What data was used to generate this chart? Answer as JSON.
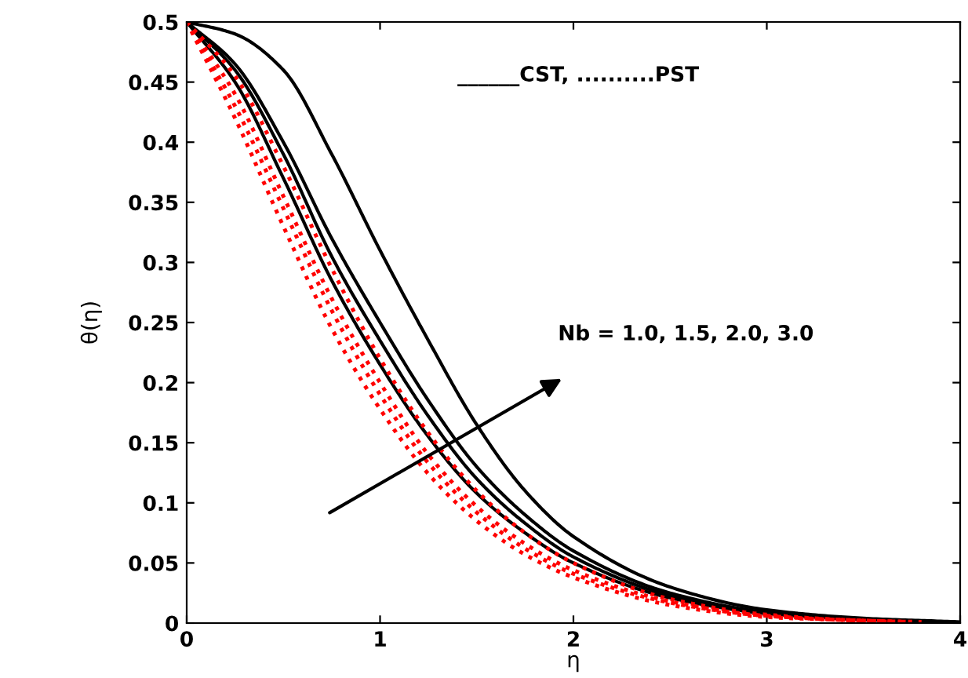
{
  "chart_data": {
    "type": "line",
    "xlabel": "η",
    "ylabel": "θ(η)",
    "series": [
      {
        "color": "#000000",
        "line_style": "solid",
        "x": [
          0,
          0.25,
          0.5,
          0.75,
          1,
          1.25,
          1.5,
          1.75,
          2,
          2.5,
          3,
          3.5,
          4
        ],
        "values": [
          0.5,
          0.49,
          0.46,
          0.39,
          0.31,
          0.235,
          0.165,
          0.11,
          0.072,
          0.03,
          0.011,
          0.004,
          0.001
        ]
      },
      {
        "color": "#000000",
        "line_style": "solid",
        "x": [
          0,
          0.25,
          0.5,
          0.75,
          1,
          1.25,
          1.5,
          1.75,
          2,
          2.5,
          3,
          3.5,
          3.95
        ],
        "values": [
          0.5,
          0.465,
          0.4,
          0.32,
          0.25,
          0.185,
          0.13,
          0.09,
          0.06,
          0.025,
          0.009,
          0.003,
          0.001
        ]
      },
      {
        "color": "#000000",
        "line_style": "solid",
        "x": [
          0,
          0.25,
          0.5,
          0.75,
          1,
          1.25,
          1.5,
          1.75,
          2,
          2.5,
          3,
          3.5,
          3.9
        ],
        "values": [
          0.5,
          0.46,
          0.39,
          0.305,
          0.235,
          0.172,
          0.12,
          0.083,
          0.055,
          0.023,
          0.008,
          0.003,
          0.001
        ]
      },
      {
        "color": "#000000",
        "line_style": "solid",
        "x": [
          0,
          0.25,
          0.5,
          0.75,
          1,
          1.25,
          1.5,
          1.75,
          2,
          2.5,
          3,
          3.5,
          3.85
        ],
        "values": [
          0.5,
          0.45,
          0.37,
          0.285,
          0.215,
          0.155,
          0.108,
          0.075,
          0.05,
          0.021,
          0.008,
          0.003,
          0.001
        ]
      },
      {
        "color": "#ff0000",
        "line_style": "dotted",
        "x": [
          0,
          0.25,
          0.5,
          0.75,
          1,
          1.25,
          1.5,
          1.75,
          2,
          2.5,
          3,
          3.5,
          3.8
        ],
        "values": [
          0.5,
          0.455,
          0.38,
          0.295,
          0.22,
          0.158,
          0.11,
          0.075,
          0.05,
          0.02,
          0.007,
          0.002,
          0.001
        ]
      },
      {
        "color": "#ff0000",
        "line_style": "dotted",
        "x": [
          0,
          0.25,
          0.5,
          0.75,
          1,
          1.25,
          1.5,
          1.75,
          2,
          2.5,
          3,
          3.5,
          3.75
        ],
        "values": [
          0.5,
          0.44,
          0.355,
          0.27,
          0.2,
          0.14,
          0.097,
          0.066,
          0.044,
          0.018,
          0.006,
          0.002,
          0.001
        ]
      },
      {
        "color": "#ff0000",
        "line_style": "dotted",
        "x": [
          0,
          0.25,
          0.5,
          0.75,
          1,
          1.25,
          1.5,
          1.75,
          2,
          2.5,
          3,
          3.5,
          3.7
        ],
        "values": [
          0.5,
          0.43,
          0.345,
          0.26,
          0.19,
          0.133,
          0.092,
          0.062,
          0.041,
          0.017,
          0.006,
          0.002,
          0.001
        ]
      },
      {
        "color": "#ff0000",
        "line_style": "dotted",
        "x": [
          0,
          0.25,
          0.5,
          0.75,
          1,
          1.25,
          1.5,
          1.75,
          2,
          2.5,
          3,
          3.5,
          3.65
        ],
        "values": [
          0.5,
          0.42,
          0.33,
          0.245,
          0.178,
          0.124,
          0.085,
          0.057,
          0.038,
          0.015,
          0.005,
          0.002,
          0.001
        ]
      }
    ],
    "annotations": [
      "______CST, ..........PST",
      "Nb = 1.0, 1.5, 2.0, 3.0"
    ],
    "xlim": [
      0,
      4
    ],
    "xticks": [
      0,
      1,
      2,
      3,
      4
    ],
    "ylim": [
      0,
      0.5
    ],
    "yticks": [
      0,
      0.05,
      0.1,
      0.15,
      0.2,
      0.25,
      0.3,
      0.35,
      0.4,
      0.45,
      0.5
    ],
    "grid": false,
    "legend": false
  }
}
